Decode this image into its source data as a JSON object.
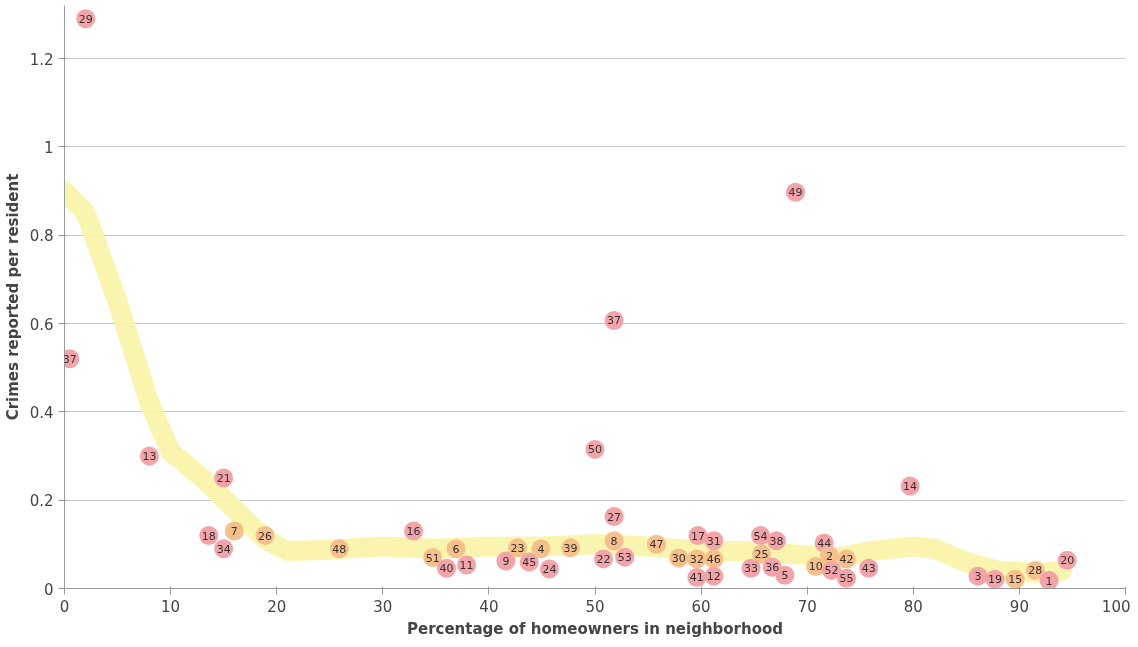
{
  "chart_data": {
    "type": "scatter",
    "xlabel": "Percentage of homeowners in neighborhood",
    "ylabel": "Crimes reported per resident",
    "xlim": [
      0,
      100
    ],
    "xticks": [
      0,
      10,
      20,
      30,
      40,
      50,
      60,
      70,
      80,
      90,
      100
    ],
    "ylim": [
      0,
      1.32
    ],
    "yticks": [
      0,
      0.2,
      0.4,
      0.6,
      0.8,
      1,
      1.2
    ],
    "grid": "y",
    "series": [
      {
        "type": "line",
        "color": "#f8f4a6",
        "x": [
          0,
          2,
          5,
          8,
          10,
          13,
          16,
          19,
          21,
          25,
          30,
          35,
          40,
          45,
          50,
          55,
          60,
          65,
          70,
          73,
          76,
          80,
          82,
          85,
          88,
          92,
          94
        ],
        "values": [
          0.9,
          0.85,
          0.65,
          0.42,
          0.31,
          0.25,
          0.18,
          0.11,
          0.085,
          0.088,
          0.095,
          0.09,
          0.095,
          0.095,
          0.1,
          0.095,
          0.085,
          0.085,
          0.075,
          0.07,
          0.085,
          0.095,
          0.09,
          0.06,
          0.04,
          0.035,
          0.04
        ]
      },
      {
        "marker": "circle",
        "x": [
          2.0,
          0.5,
          8.0,
          15.0,
          13.6,
          16.0,
          15.0,
          18.9,
          25.9,
          32.9,
          36.9,
          34.7,
          36.0,
          37.9,
          41.6,
          42.7,
          43.8,
          44.9,
          45.7,
          47.7,
          50.0,
          51.8,
          51.8,
          50.8,
          52.8,
          51.8,
          55.8,
          57.9,
          59.7,
          61.2,
          59.6,
          61.2,
          59.6,
          61.2,
          65.6,
          67.1,
          65.7,
          64.7,
          66.7,
          67.9,
          68.9,
          71.6,
          72.1,
          73.7,
          70.8,
          72.3,
          73.7,
          75.8,
          79.7,
          86.1,
          87.7,
          89.6,
          91.5,
          92.8,
          94.5
        ],
        "values": [
          1.29,
          0.52,
          0.3,
          0.25,
          0.12,
          0.13,
          0.09,
          0.12,
          0.09,
          0.13,
          0.09,
          0.07,
          0.046,
          0.053,
          0.062,
          0.092,
          0.06,
          0.09,
          0.044,
          0.092,
          0.315,
          0.163,
          0.108,
          0.067,
          0.071,
          0.607,
          0.1,
          0.069,
          0.12,
          0.108,
          0.067,
          0.067,
          0.025,
          0.028,
          0.12,
          0.108,
          0.078,
          0.046,
          0.048,
          0.03,
          0.897,
          0.103,
          0.074,
          0.067,
          0.05,
          0.041,
          0.023,
          0.046,
          0.232,
          0.028,
          0.021,
          0.021,
          0.041,
          0.018,
          0.064
        ],
        "colors": [
          "#f4a3a8",
          "#f4a3a8",
          "#f4a3a8",
          "#f4a3a8",
          "#f4a3a8",
          "#f7bf8a",
          "#f4a3a8",
          "#f7bf8a",
          "#f7bf8a",
          "#f4a3a8",
          "#f7bf8a",
          "#f7bf8a",
          "#f4a3a8",
          "#f4a3a8",
          "#f4a3a8",
          "#f7bf8a",
          "#f4a3a8",
          "#f7bf8a",
          "#f4a3a8",
          "#f7bf8a",
          "#f4a3a8",
          "#f4a3a8",
          "#f7bf8a",
          "#f4a3a8",
          "#f4a3a8",
          "#f4a3a8",
          "#f7bf8a",
          "#f7bf8a",
          "#f4a3a8",
          "#f4a3a8",
          "#f7bf8a",
          "#f7bf8a",
          "#f4a3a8",
          "#f4a3a8",
          "#f4a3a8",
          "#f4a3a8",
          "#f7bf8a",
          "#f4a3a8",
          "#f4a3a8",
          "#f4a3a8",
          "#f4a3a8",
          "#f4a3a8",
          "#f7bf8a",
          "#f7bf8a",
          "#f7bf8a",
          "#f4a3a8",
          "#f4a3a8",
          "#f4a3a8",
          "#f4a3a8",
          "#f4a3a8",
          "#f4a3a8",
          "#f7bf8a",
          "#f7bf8a",
          "#f4a3a8",
          "#f4a3a8"
        ]
      }
    ],
    "annotations": [
      {
        "text": "29",
        "x": 2.0,
        "y": 1.29
      },
      {
        "text": "37",
        "x": 0.5,
        "y": 0.52
      },
      {
        "text": "13",
        "x": 8.0,
        "y": 0.3
      },
      {
        "text": "21",
        "x": 15.0,
        "y": 0.25
      },
      {
        "text": "18",
        "x": 13.6,
        "y": 0.12
      },
      {
        "text": "7",
        "x": 16.0,
        "y": 0.13
      },
      {
        "text": "34",
        "x": 15.0,
        "y": 0.09
      },
      {
        "text": "26",
        "x": 18.9,
        "y": 0.12
      },
      {
        "text": "48",
        "x": 25.9,
        "y": 0.09
      },
      {
        "text": "16",
        "x": 32.9,
        "y": 0.13
      },
      {
        "text": "6",
        "x": 36.9,
        "y": 0.09
      },
      {
        "text": "51",
        "x": 34.7,
        "y": 0.07
      },
      {
        "text": "40",
        "x": 36.0,
        "y": 0.046
      },
      {
        "text": "11",
        "x": 37.9,
        "y": 0.053
      },
      {
        "text": "9",
        "x": 41.6,
        "y": 0.062
      },
      {
        "text": "23",
        "x": 42.7,
        "y": 0.092
      },
      {
        "text": "45",
        "x": 43.8,
        "y": 0.06
      },
      {
        "text": "4",
        "x": 44.9,
        "y": 0.09
      },
      {
        "text": "24",
        "x": 45.7,
        "y": 0.044
      },
      {
        "text": "39",
        "x": 47.7,
        "y": 0.092
      },
      {
        "text": "50",
        "x": 50.0,
        "y": 0.315
      },
      {
        "text": "27",
        "x": 51.8,
        "y": 0.163
      },
      {
        "text": "8",
        "x": 51.8,
        "y": 0.108
      },
      {
        "text": "22",
        "x": 50.8,
        "y": 0.067
      },
      {
        "text": "53",
        "x": 52.8,
        "y": 0.071
      },
      {
        "text": "37",
        "x": 51.8,
        "y": 0.607
      },
      {
        "text": "47",
        "x": 55.8,
        "y": 0.1
      },
      {
        "text": "30",
        "x": 57.9,
        "y": 0.069
      },
      {
        "text": "17",
        "x": 59.7,
        "y": 0.12
      },
      {
        "text": "31",
        "x": 61.2,
        "y": 0.108
      },
      {
        "text": "32",
        "x": 59.6,
        "y": 0.067
      },
      {
        "text": "46",
        "x": 61.2,
        "y": 0.067
      },
      {
        "text": "41",
        "x": 59.6,
        "y": 0.025
      },
      {
        "text": "12",
        "x": 61.2,
        "y": 0.028
      },
      {
        "text": "54",
        "x": 65.6,
        "y": 0.12
      },
      {
        "text": "38",
        "x": 67.1,
        "y": 0.108
      },
      {
        "text": "25",
        "x": 65.7,
        "y": 0.078
      },
      {
        "text": "33",
        "x": 64.7,
        "y": 0.046
      },
      {
        "text": "36",
        "x": 66.7,
        "y": 0.048
      },
      {
        "text": "5",
        "x": 67.9,
        "y": 0.03
      },
      {
        "text": "49",
        "x": 68.9,
        "y": 0.897
      },
      {
        "text": "44",
        "x": 71.6,
        "y": 0.103
      },
      {
        "text": "2",
        "x": 72.1,
        "y": 0.074
      },
      {
        "text": "42",
        "x": 73.7,
        "y": 0.067
      },
      {
        "text": "10",
        "x": 70.8,
        "y": 0.05
      },
      {
        "text": "52",
        "x": 72.3,
        "y": 0.041
      },
      {
        "text": "55",
        "x": 73.7,
        "y": 0.023
      },
      {
        "text": "43",
        "x": 75.8,
        "y": 0.046
      },
      {
        "text": "14",
        "x": 79.7,
        "y": 0.232
      },
      {
        "text": "3",
        "x": 86.1,
        "y": 0.028
      },
      {
        "text": "19",
        "x": 87.7,
        "y": 0.021
      },
      {
        "text": "15",
        "x": 89.6,
        "y": 0.021
      },
      {
        "text": "28",
        "x": 91.5,
        "y": 0.041
      },
      {
        "text": "1",
        "x": 92.8,
        "y": 0.018
      },
      {
        "text": "20",
        "x": 94.5,
        "y": 0.064
      }
    ]
  }
}
